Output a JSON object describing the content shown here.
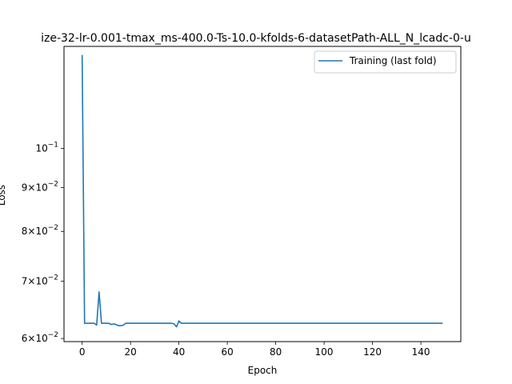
{
  "chart_data": {
    "type": "line",
    "title": "ize-32-lr-0.001-tmax_ms-400.0-Ts-10.0-kfolds-6-datasetPath-ALL_N_lcadc-0-u",
    "xlabel": "Epoch",
    "ylabel": "Loss",
    "xlim": [
      -7.5,
      156.5
    ],
    "ylim": [
      0.0595,
      0.1315
    ],
    "yscale": "log",
    "grid": false,
    "legend_position": "top-right",
    "x_ticks": [
      0,
      20,
      40,
      60,
      80,
      100,
      120,
      140
    ],
    "x_tick_labels": [
      "0",
      "20",
      "40",
      "60",
      "80",
      "100",
      "120",
      "140"
    ],
    "y_ticks": [
      0.06,
      0.07,
      0.08,
      0.09,
      0.1
    ],
    "y_tick_labels": [
      {
        "base": "6",
        "times": "×10",
        "exp": "−2"
      },
      {
        "base": "7",
        "times": "×10",
        "exp": "−2"
      },
      {
        "base": "8",
        "times": "×10",
        "exp": "−2"
      },
      {
        "base": "9",
        "times": "×10",
        "exp": "−2"
      },
      {
        "base": "",
        "times": "10",
        "exp": "−1"
      }
    ],
    "series": [
      {
        "name": "Training (last fold)",
        "color": "#1f77b4",
        "x": [
          0,
          1,
          2,
          3,
          4,
          5,
          6,
          7,
          8,
          9,
          10,
          11,
          12,
          13,
          14,
          15,
          16,
          17,
          18,
          19,
          20,
          25,
          30,
          35,
          36,
          37,
          38,
          39,
          40,
          41,
          45,
          50,
          60,
          70,
          80,
          90,
          100,
          110,
          120,
          130,
          140,
          149
        ],
        "y": [
          0.1285,
          0.0625,
          0.0625,
          0.0625,
          0.0625,
          0.0625,
          0.0622,
          0.068,
          0.0625,
          0.0625,
          0.0625,
          0.0625,
          0.0623,
          0.0624,
          0.0623,
          0.0621,
          0.0621,
          0.0622,
          0.0625,
          0.0625,
          0.0625,
          0.0625,
          0.0625,
          0.0625,
          0.0625,
          0.0625,
          0.0624,
          0.0619,
          0.0629,
          0.0625,
          0.0625,
          0.0625,
          0.0625,
          0.0625,
          0.0625,
          0.0625,
          0.0625,
          0.0625,
          0.0625,
          0.0625,
          0.0625,
          0.0625
        ]
      }
    ]
  }
}
